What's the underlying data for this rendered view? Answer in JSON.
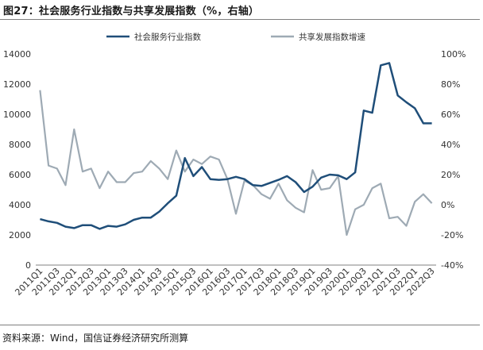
{
  "title": "图27：社会服务行业指数与共享发展指数（%，右轴）",
  "source": "资料来源：Wind，国信证券经济研究所测算",
  "chart_data": {
    "type": "line",
    "categories": [
      "2011Q1",
      "2011Q2",
      "2011Q3",
      "2011Q4",
      "2012Q1",
      "2012Q2",
      "2012Q3",
      "2012Q4",
      "2013Q1",
      "2013Q2",
      "2013Q3",
      "2013Q4",
      "2014Q1",
      "2014Q2",
      "2014Q3",
      "2014Q4",
      "2015Q1",
      "2015Q2",
      "2015Q3",
      "2015Q4",
      "2016Q1",
      "2016Q2",
      "2016Q3",
      "2016Q4",
      "2017Q1",
      "2017Q2",
      "2017Q3",
      "2017Q4",
      "2018Q1",
      "2018Q2",
      "2018Q3",
      "2018Q4",
      "2019Q1",
      "2019Q2",
      "2019Q3",
      "2019Q4",
      "2020Q1",
      "2020Q2",
      "2020Q3",
      "2020Q4",
      "2021Q1",
      "2021Q2",
      "2021Q3",
      "2021Q4",
      "2022Q1",
      "2022Q2",
      "2022Q3"
    ],
    "tick_labels": [
      "2011Q1",
      "2011Q3",
      "2012Q1",
      "2012Q3",
      "2013Q1",
      "2013Q3",
      "2014Q1",
      "2014Q3",
      "2015Q1",
      "2015Q3",
      "2016Q1",
      "2016Q3",
      "2017Q1",
      "2017Q3",
      "2018Q1",
      "2018Q3",
      "2019Q1",
      "2019Q3",
      "2020Q1",
      "2020Q3",
      "2021Q1",
      "2021Q3",
      "2022Q1",
      "2022Q3"
    ],
    "left_axis": {
      "ylim": [
        0,
        14000
      ],
      "ticks": [
        "0",
        "2000",
        "4000",
        "6000",
        "8000",
        "10000",
        "12000",
        "14000"
      ]
    },
    "right_axis": {
      "ylim": [
        -40,
        100
      ],
      "ticks": [
        "-40%",
        "-20%",
        "0%",
        "20%",
        "40%",
        "60%",
        "80%",
        "100%"
      ]
    },
    "series": [
      {
        "name": "社会服务行业指数",
        "axis": "left",
        "color": "#1f4e79",
        "values": [
          3050,
          2900,
          2800,
          2550,
          2450,
          2650,
          2650,
          2400,
          2600,
          2550,
          2700,
          3000,
          3150,
          3150,
          3550,
          4100,
          4600,
          7100,
          5900,
          6500,
          5700,
          5650,
          5700,
          5850,
          5700,
          5300,
          5250,
          5450,
          5650,
          5900,
          5500,
          4850,
          5200,
          5800,
          6000,
          5950,
          5700,
          6150,
          10250,
          10100,
          13250,
          13400,
          11250,
          10800,
          10400,
          9400,
          9400
        ]
      },
      {
        "name": "共享发展指数增速",
        "axis": "right",
        "color": "#9eaab4",
        "values": [
          76,
          26,
          24,
          13,
          50,
          22,
          24,
          11,
          22,
          15,
          15,
          21,
          22,
          29,
          24,
          17,
          36,
          22,
          30,
          27,
          32,
          30,
          17,
          -6,
          16,
          13,
          7,
          4,
          14,
          3,
          -2,
          -5,
          23,
          10,
          11,
          19,
          -20,
          -3,
          0,
          11,
          14,
          -9,
          -8,
          -14,
          2,
          7,
          1
        ]
      }
    ],
    "legend_position": "top",
    "grid": false
  }
}
